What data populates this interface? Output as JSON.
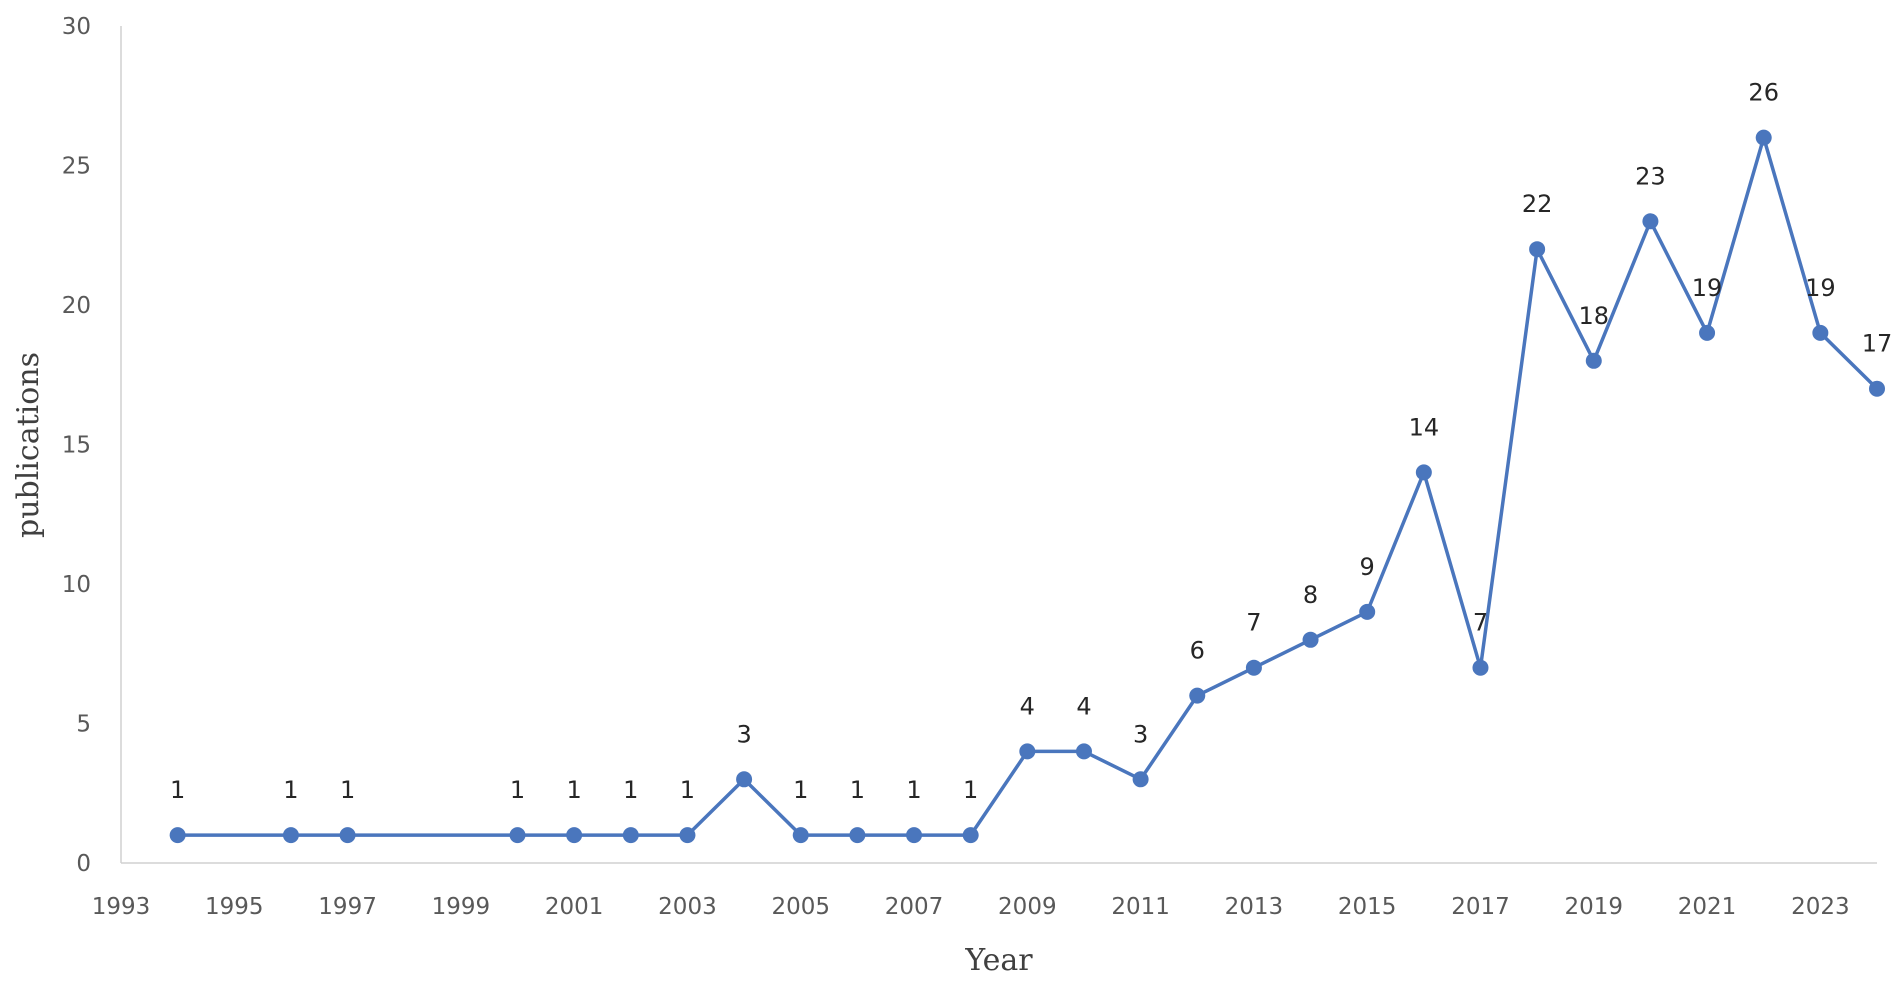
{
  "chart_data": {
    "type": "line",
    "title": "",
    "xlabel": "Year",
    "ylabel": "publications",
    "xlim": [
      1993,
      2024
    ],
    "ylim": [
      0,
      30
    ],
    "x_ticks": [
      "1993",
      "1995",
      "1997",
      "1999",
      "2001",
      "2003",
      "2005",
      "2007",
      "2009",
      "2011",
      "2013",
      "2015",
      "2017",
      "2019",
      "2021",
      "2023"
    ],
    "y_ticks": [
      "0",
      "5",
      "10",
      "15",
      "20",
      "25",
      "30"
    ],
    "grid": false,
    "legend": "none",
    "series": [
      {
        "color": "#4a76bd",
        "x": [
          1994,
          1996,
          1997,
          2000,
          2001,
          2002,
          2003,
          2004,
          2005,
          2006,
          2007,
          2008,
          2009,
          2010,
          2011,
          2012,
          2013,
          2014,
          2015,
          2016,
          2017,
          2018,
          2019,
          2020,
          2021,
          2022,
          2023,
          2024
        ],
        "y": [
          1,
          1,
          1,
          1,
          1,
          1,
          1,
          3,
          1,
          1,
          1,
          1,
          4,
          4,
          3,
          6,
          7,
          8,
          9,
          14,
          7,
          22,
          18,
          23,
          19,
          26,
          19,
          17
        ],
        "labels": [
          "1",
          "1",
          "1",
          "1",
          "1",
          "1",
          "1",
          "3",
          "1",
          "1",
          "1",
          "1",
          "4",
          "4",
          "3",
          "6",
          "7",
          "8",
          "9",
          "14",
          "7",
          "22",
          "18",
          "23",
          "19",
          "26",
          "19",
          "17"
        ]
      }
    ]
  }
}
